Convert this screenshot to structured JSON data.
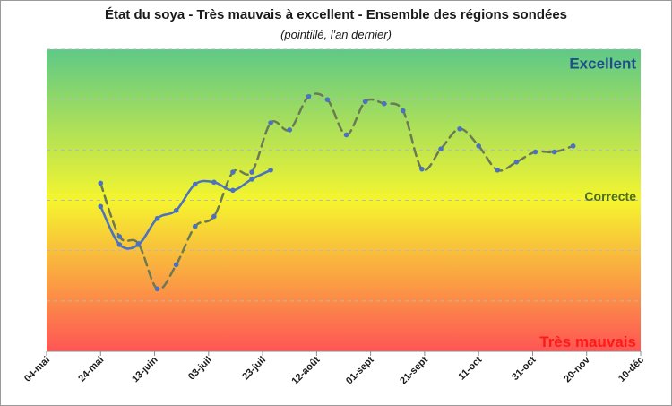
{
  "chart_data": {
    "type": "line",
    "title": "État du soya - Très mauvais à excellent - Ensemble des régions sondées",
    "subtitle": "(pointillé, l'an dernier)",
    "x_tick_labels": [
      "04-mai",
      "24-mai",
      "13-juin",
      "03-juil",
      "23-juil",
      "12-août",
      "01-sept",
      "21-sept",
      "11-oct",
      "31-oct",
      "20-nov",
      "10-déc"
    ],
    "xlim": [
      "2019-05-04",
      "2019-12-10"
    ],
    "ylim": [
      1,
      4
    ],
    "y_tick_labels": [
      "",
      "",
      "",
      "",
      "",
      "",
      ""
    ],
    "bands": [
      {
        "label": "Excellent",
        "color": "#1f4e8c",
        "y": 3.86
      },
      {
        "label": "Correcte",
        "color": "#4d6b1e",
        "y": 2.53
      },
      {
        "label": "Très mauvais",
        "color": "#ff1a1a",
        "y": 1.1
      }
    ],
    "background_gradient": [
      "#5ec987",
      "#f5f52e",
      "#ff5555"
    ],
    "grid": true,
    "series": [
      {
        "style": "solid",
        "color": "#4a72c0",
        "points": [
          {
            "x": "2019-05-24",
            "y": 2.44
          },
          {
            "x": "2019-05-31",
            "y": 2.06
          },
          {
            "x": "2019-06-07",
            "y": 2.06
          },
          {
            "x": "2019-06-14",
            "y": 2.32
          },
          {
            "x": "2019-06-21",
            "y": 2.4
          },
          {
            "x": "2019-06-28",
            "y": 2.66
          },
          {
            "x": "2019-07-05",
            "y": 2.68
          },
          {
            "x": "2019-07-12",
            "y": 2.6
          },
          {
            "x": "2019-07-19",
            "y": 2.71
          },
          {
            "x": "2019-07-26",
            "y": 2.8
          }
        ]
      },
      {
        "style": "dashed",
        "color": "#6b7a55",
        "points": [
          {
            "x": "2019-05-24",
            "y": 2.67
          },
          {
            "x": "2019-05-31",
            "y": 2.14
          },
          {
            "x": "2019-06-07",
            "y": 2.07
          },
          {
            "x": "2019-06-14",
            "y": 1.62
          },
          {
            "x": "2019-06-21",
            "y": 1.86
          },
          {
            "x": "2019-06-28",
            "y": 2.24
          },
          {
            "x": "2019-07-05",
            "y": 2.34
          },
          {
            "x": "2019-07-12",
            "y": 2.78
          },
          {
            "x": "2019-07-19",
            "y": 2.78
          },
          {
            "x": "2019-07-26",
            "y": 3.27
          },
          {
            "x": "2019-08-02",
            "y": 3.2
          },
          {
            "x": "2019-08-09",
            "y": 3.53
          },
          {
            "x": "2019-08-16",
            "y": 3.5
          },
          {
            "x": "2019-08-23",
            "y": 3.15
          },
          {
            "x": "2019-08-30",
            "y": 3.48
          },
          {
            "x": "2019-09-06",
            "y": 3.46
          },
          {
            "x": "2019-09-13",
            "y": 3.39
          },
          {
            "x": "2019-09-20",
            "y": 2.81
          },
          {
            "x": "2019-09-27",
            "y": 3.01
          },
          {
            "x": "2019-10-04",
            "y": 3.21
          },
          {
            "x": "2019-10-11",
            "y": 3.04
          },
          {
            "x": "2019-10-18",
            "y": 2.8
          },
          {
            "x": "2019-10-25",
            "y": 2.88
          },
          {
            "x": "2019-11-01",
            "y": 2.98
          },
          {
            "x": "2019-11-08",
            "y": 2.98
          },
          {
            "x": "2019-11-15",
            "y": 3.04
          }
        ]
      }
    ]
  }
}
